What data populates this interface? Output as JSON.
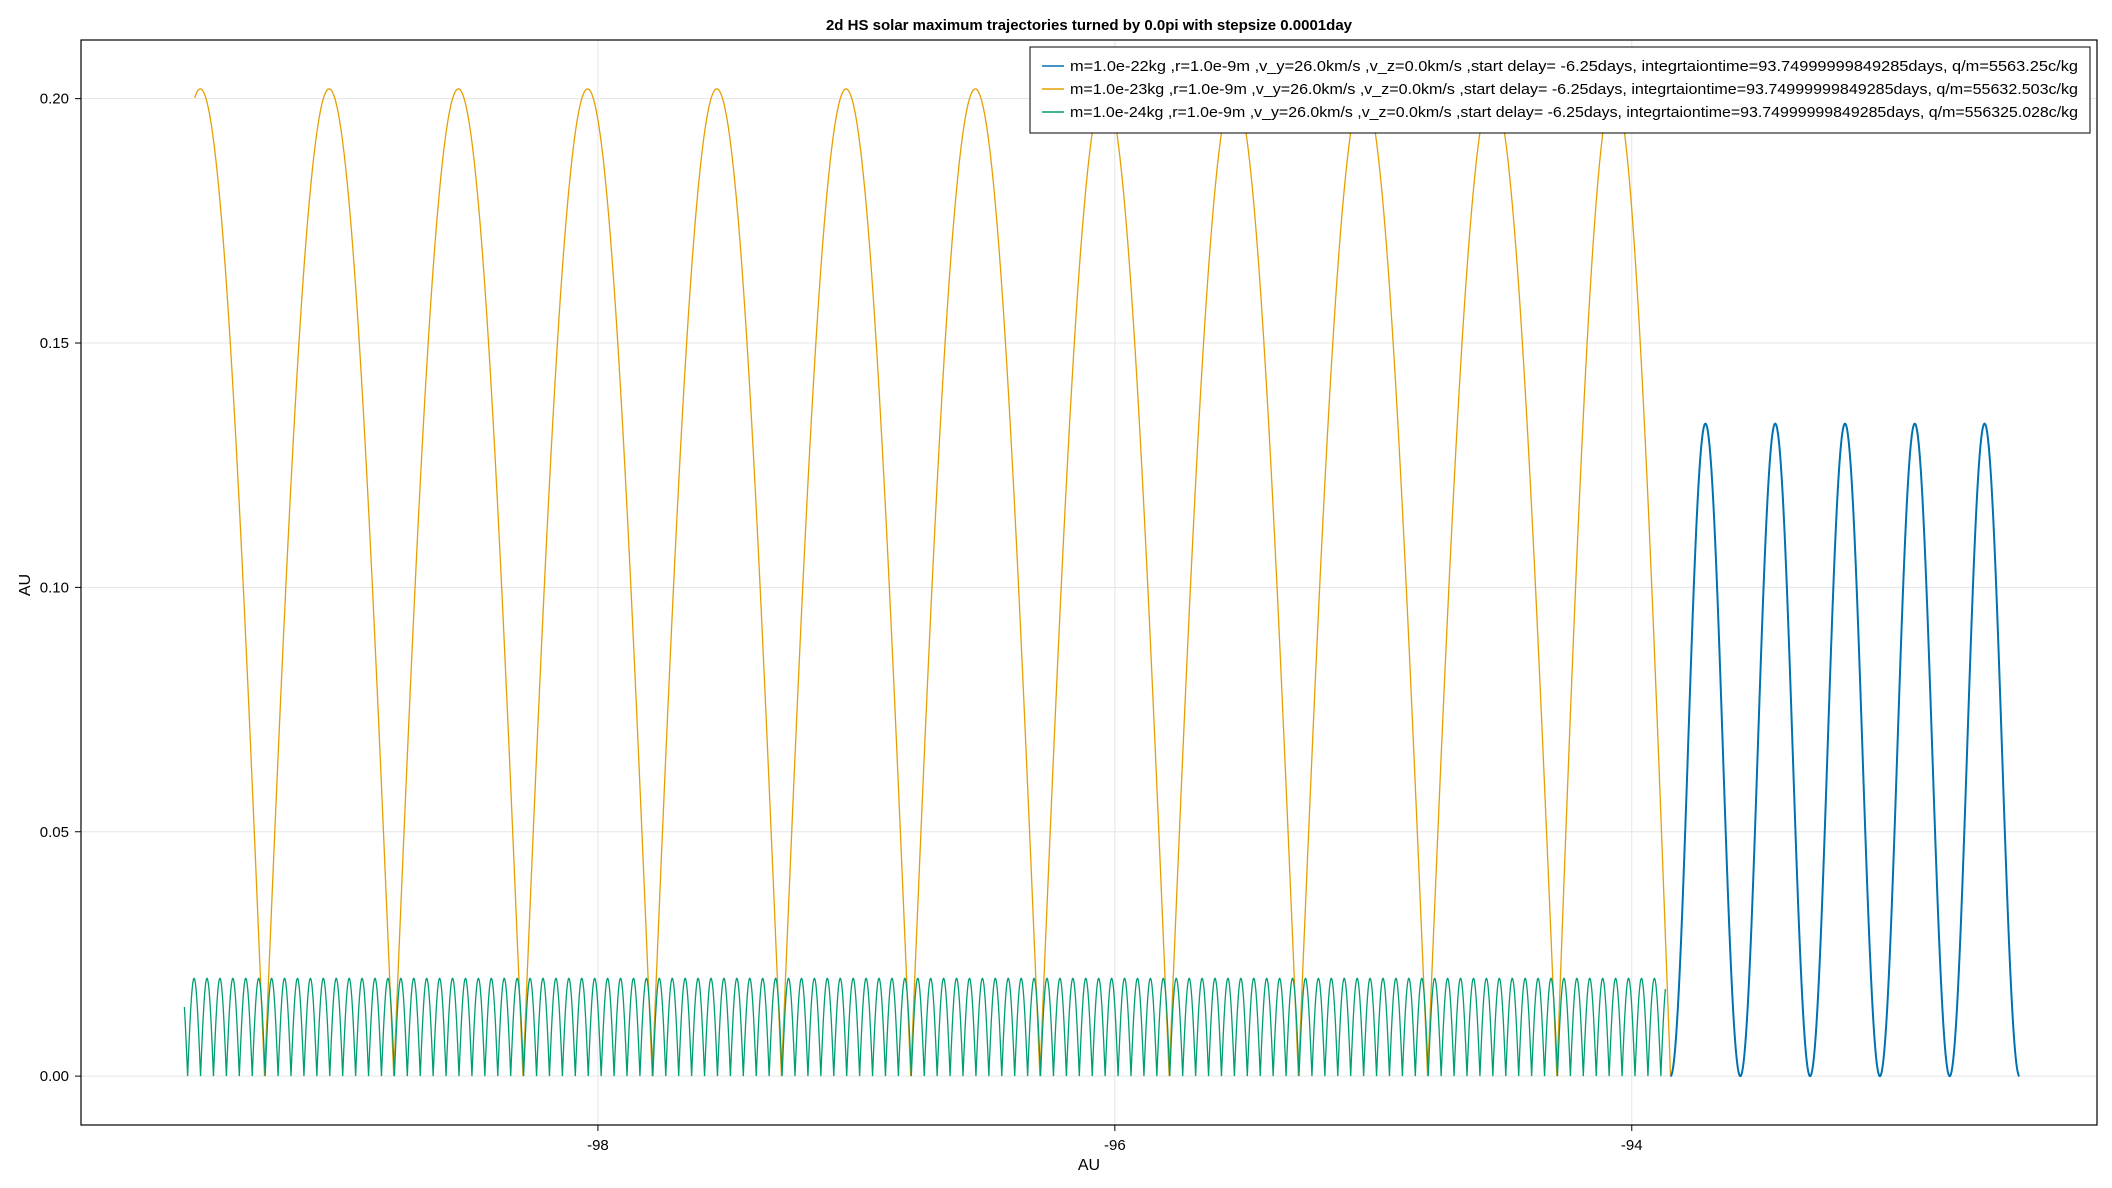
{
  "chart_data": {
    "type": "line",
    "title": "2d HS solar maximum trajectories turned by 0.0pi with stepsize 0.0001day",
    "xlabel": "AU",
    "ylabel": "AU",
    "xlim": [
      -100.0,
      -92.2
    ],
    "ylim": [
      -0.01,
      0.212
    ],
    "xticks": [
      -98,
      -96,
      -94
    ],
    "xtick_labels": [
      "-98",
      "-96",
      "-94"
    ],
    "yticks": [
      0.0,
      0.05,
      0.1,
      0.15,
      0.2
    ],
    "ytick_labels": [
      "0.00",
      "0.05",
      "0.10",
      "0.15",
      "0.20"
    ],
    "grid": true,
    "legend_position": "top-right",
    "series": [
      {
        "name": "m=1.0e-22kg ,r=1.0e-9m ,v_y=26.0km/s ,v_z=0.0km/s ,start delay= -6.25days, integrtaiontime=93.74999999849285days, q/m=5563.25c/kg",
        "color": "#0072b2",
        "shape": "sine",
        "x_start": -93.85,
        "x_end": -92.5,
        "y_min": 0.0,
        "y_max": 0.1335,
        "period": 0.27,
        "y_end": 0.006
      },
      {
        "name": "m=1.0e-23kg ,r=1.0e-9m ,v_y=26.0km/s ,v_z=0.0km/s ,start delay= -6.25days, integrtaiontime=93.74999999849285days, q/m=55632.503c/kg",
        "color": "#e69f00",
        "shape": "cycloid",
        "x_start": -99.56,
        "x_end": -93.85,
        "y_min": 0.0,
        "y_max": 0.202,
        "cusps": [
          -99.29,
          -98.79,
          -98.29,
          -97.79,
          -97.29,
          -96.79,
          -96.29,
          -95.79,
          -95.29,
          -94.79,
          -94.29,
          -93.85
        ],
        "y_start": 0.2005
      },
      {
        "name": "m=1.0e-24kg ,r=1.0e-9m ,v_y=26.0km/s ,v_z=0.0km/s ,start delay= -6.25days, integrtaiontime=93.74999999849285days, q/m=556325.028c/kg",
        "color": "#009e73",
        "shape": "cycloid",
        "x_start": -99.6,
        "x_end": -93.87,
        "y_min": 0.0,
        "y_max": 0.02,
        "period": 0.05,
        "y_start": 0.01
      }
    ]
  }
}
